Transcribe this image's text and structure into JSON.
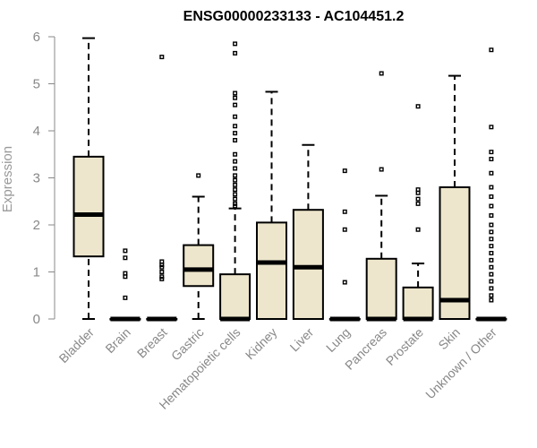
{
  "chart_data": {
    "type": "boxplot",
    "title": "ENSG00000233133 - AC104451.2",
    "ylabel": "Expression",
    "xlabel": "",
    "ylim": [
      0,
      6
    ],
    "yticks": [
      0,
      1,
      2,
      3,
      4,
      5,
      6
    ],
    "grid": false,
    "box_color": "#ede6cc",
    "line_color": "#000000",
    "categories": [
      "Bladder",
      "Brain",
      "Breast",
      "Gastric",
      "Hematopoietic cells",
      "Kidney",
      "Liver",
      "Lung",
      "Pancreas",
      "Prostate",
      "Skin",
      "Unknown / Other"
    ],
    "boxes": [
      {
        "whisker_low": 0,
        "q1": 1.33,
        "median": 2.22,
        "q3": 3.45,
        "whisker_high": 5.97,
        "outliers": []
      },
      {
        "whisker_low": 0,
        "q1": 0,
        "median": 0,
        "q3": 0,
        "whisker_high": 0,
        "outliers": [
          1.45,
          1.3,
          0.97,
          0.9,
          0.45
        ]
      },
      {
        "whisker_low": 0,
        "q1": 0,
        "median": 0,
        "q3": 0,
        "whisker_high": 0,
        "outliers": [
          5.57,
          1.22,
          1.15,
          1.1,
          1.0,
          0.9,
          0.85
        ]
      },
      {
        "whisker_low": 0,
        "q1": 0.7,
        "median": 1.05,
        "q3": 1.57,
        "whisker_high": 2.6,
        "outliers": [
          3.05
        ]
      },
      {
        "whisker_low": 0,
        "q1": 0,
        "median": 0,
        "q3": 0.95,
        "whisker_high": 2.35,
        "outliers": [
          5.85,
          5.65,
          4.8,
          4.7,
          4.55,
          4.3,
          4.1,
          3.95,
          3.8,
          3.5,
          3.35,
          3.2,
          3.05,
          2.95,
          2.85,
          2.75,
          2.65,
          2.55,
          2.45,
          2.4
        ]
      },
      {
        "whisker_low": 0,
        "q1": 0,
        "median": 1.2,
        "q3": 2.05,
        "whisker_high": 4.83,
        "outliers": []
      },
      {
        "whisker_low": 0,
        "q1": 0,
        "median": 1.1,
        "q3": 2.32,
        "whisker_high": 3.7,
        "outliers": []
      },
      {
        "whisker_low": 0,
        "q1": 0,
        "median": 0,
        "q3": 0,
        "whisker_high": 0,
        "outliers": [
          3.15,
          2.28,
          1.9,
          0.78
        ]
      },
      {
        "whisker_low": 0,
        "q1": 0,
        "median": 0,
        "q3": 1.28,
        "whisker_high": 2.62,
        "outliers": [
          5.22,
          3.18
        ]
      },
      {
        "whisker_low": 0,
        "q1": 0,
        "median": 0,
        "q3": 0.67,
        "whisker_high": 1.18,
        "outliers": [
          4.52,
          2.75,
          2.68,
          2.55,
          2.45,
          1.9
        ]
      },
      {
        "whisker_low": 0,
        "q1": 0,
        "median": 0.4,
        "q3": 2.8,
        "whisker_high": 5.17,
        "outliers": []
      },
      {
        "whisker_low": 0,
        "q1": 0,
        "median": 0,
        "q3": 0,
        "whisker_high": 0,
        "outliers": [
          5.72,
          4.08,
          3.55,
          3.4,
          3.1,
          2.8,
          2.6,
          2.4,
          2.2,
          2.0,
          1.85,
          1.7,
          1.55,
          1.4,
          1.25,
          1.1,
          0.95,
          0.8,
          0.65,
          0.5,
          0.4
        ]
      }
    ]
  }
}
